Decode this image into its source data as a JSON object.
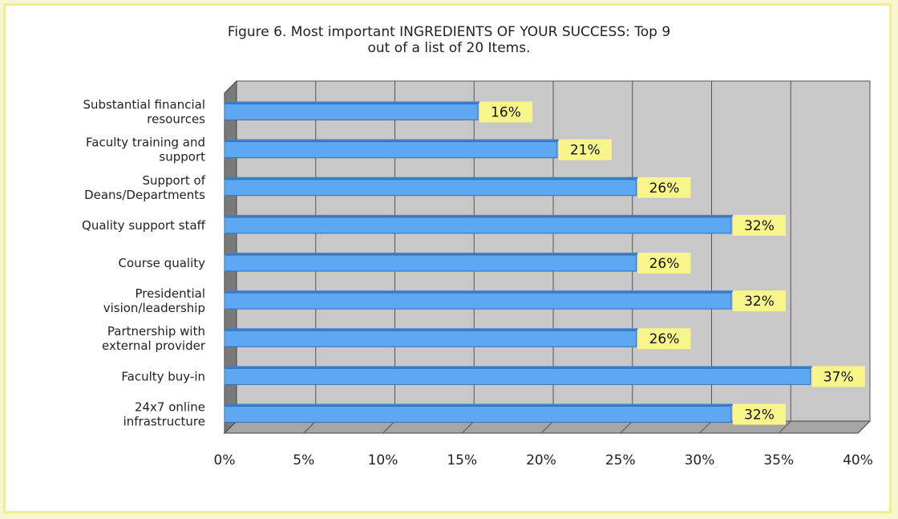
{
  "chart_data": {
    "type": "bar",
    "orientation": "horizontal",
    "title_lines": [
      "Figure 6. Most important INGREDIENTS OF YOUR SUCCESS: Top 9",
      "out of a list of 20 Items."
    ],
    "categories": [
      [
        "Substantial financial",
        "resources"
      ],
      [
        "Faculty training and",
        "support"
      ],
      [
        "Support of",
        "Deans/Departments"
      ],
      [
        "Quality support staff"
      ],
      [
        "Course quality"
      ],
      [
        "Presidential",
        "vision/leadership"
      ],
      [
        "Partnership with",
        "external provider"
      ],
      [
        "Faculty buy-in"
      ],
      [
        "24x7 online",
        "infrastructure"
      ]
    ],
    "values": [
      16,
      21,
      26,
      32,
      26,
      32,
      26,
      37,
      32
    ],
    "value_labels": [
      "16%",
      "21%",
      "26%",
      "32%",
      "26%",
      "32%",
      "26%",
      "37%",
      "32%"
    ],
    "xlim": [
      0,
      40
    ],
    "xticks": [
      0,
      5,
      10,
      15,
      20,
      25,
      30,
      35,
      40
    ],
    "xtick_labels": [
      "0%",
      "5%",
      "10%",
      "15%",
      "20%",
      "25%",
      "30%",
      "35%",
      "40%"
    ],
    "grid": true,
    "colors": {
      "bar": "#5ea8f2",
      "bar_edge": "#2f6fb8",
      "plot_bg": "#c8c8c8",
      "label_bg": "#f8f58a",
      "frame": "#f1ef88"
    }
  }
}
